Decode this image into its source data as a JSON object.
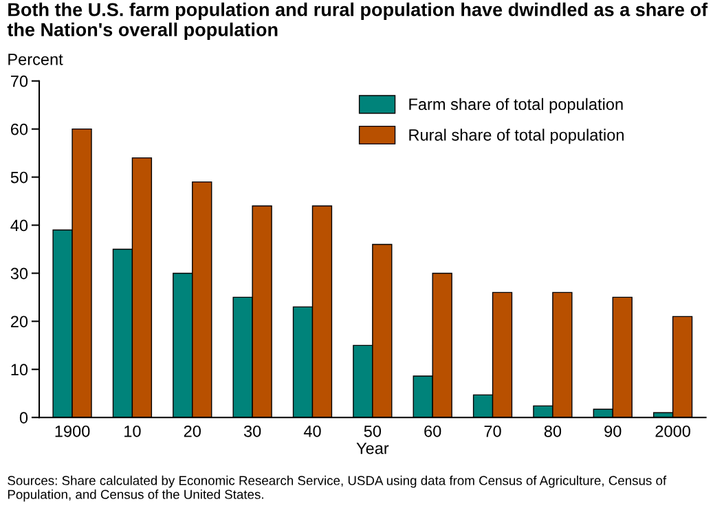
{
  "chart_data": {
    "type": "bar",
    "title": "Both the U.S. farm population and rural population have dwindled as a share of the Nation's overall population",
    "ylabel": "Percent",
    "xlabel": "Year",
    "categories": [
      "1900",
      "10",
      "20",
      "30",
      "40",
      "50",
      "60",
      "70",
      "80",
      "90",
      "2000"
    ],
    "series": [
      {
        "name": "Farm share of total population",
        "color": "#00837a",
        "values": [
          39,
          35,
          30,
          25,
          23,
          15,
          8.6,
          4.7,
          2.4,
          1.7,
          1.0
        ]
      },
      {
        "name": "Rural share of total population",
        "color": "#b85000",
        "values": [
          60,
          54,
          49,
          44,
          44,
          36,
          30,
          26,
          26,
          25,
          21
        ]
      }
    ],
    "ylim": [
      0,
      70
    ],
    "yticks": [
      0,
      10,
      20,
      30,
      40,
      50,
      60,
      70
    ],
    "grid": false,
    "legend": "top right",
    "annotations": [
      "Sources: Share calculated by Economic Research Service, USDA using data from Census of Agriculture, Census of Population, and Census of the United States."
    ]
  }
}
